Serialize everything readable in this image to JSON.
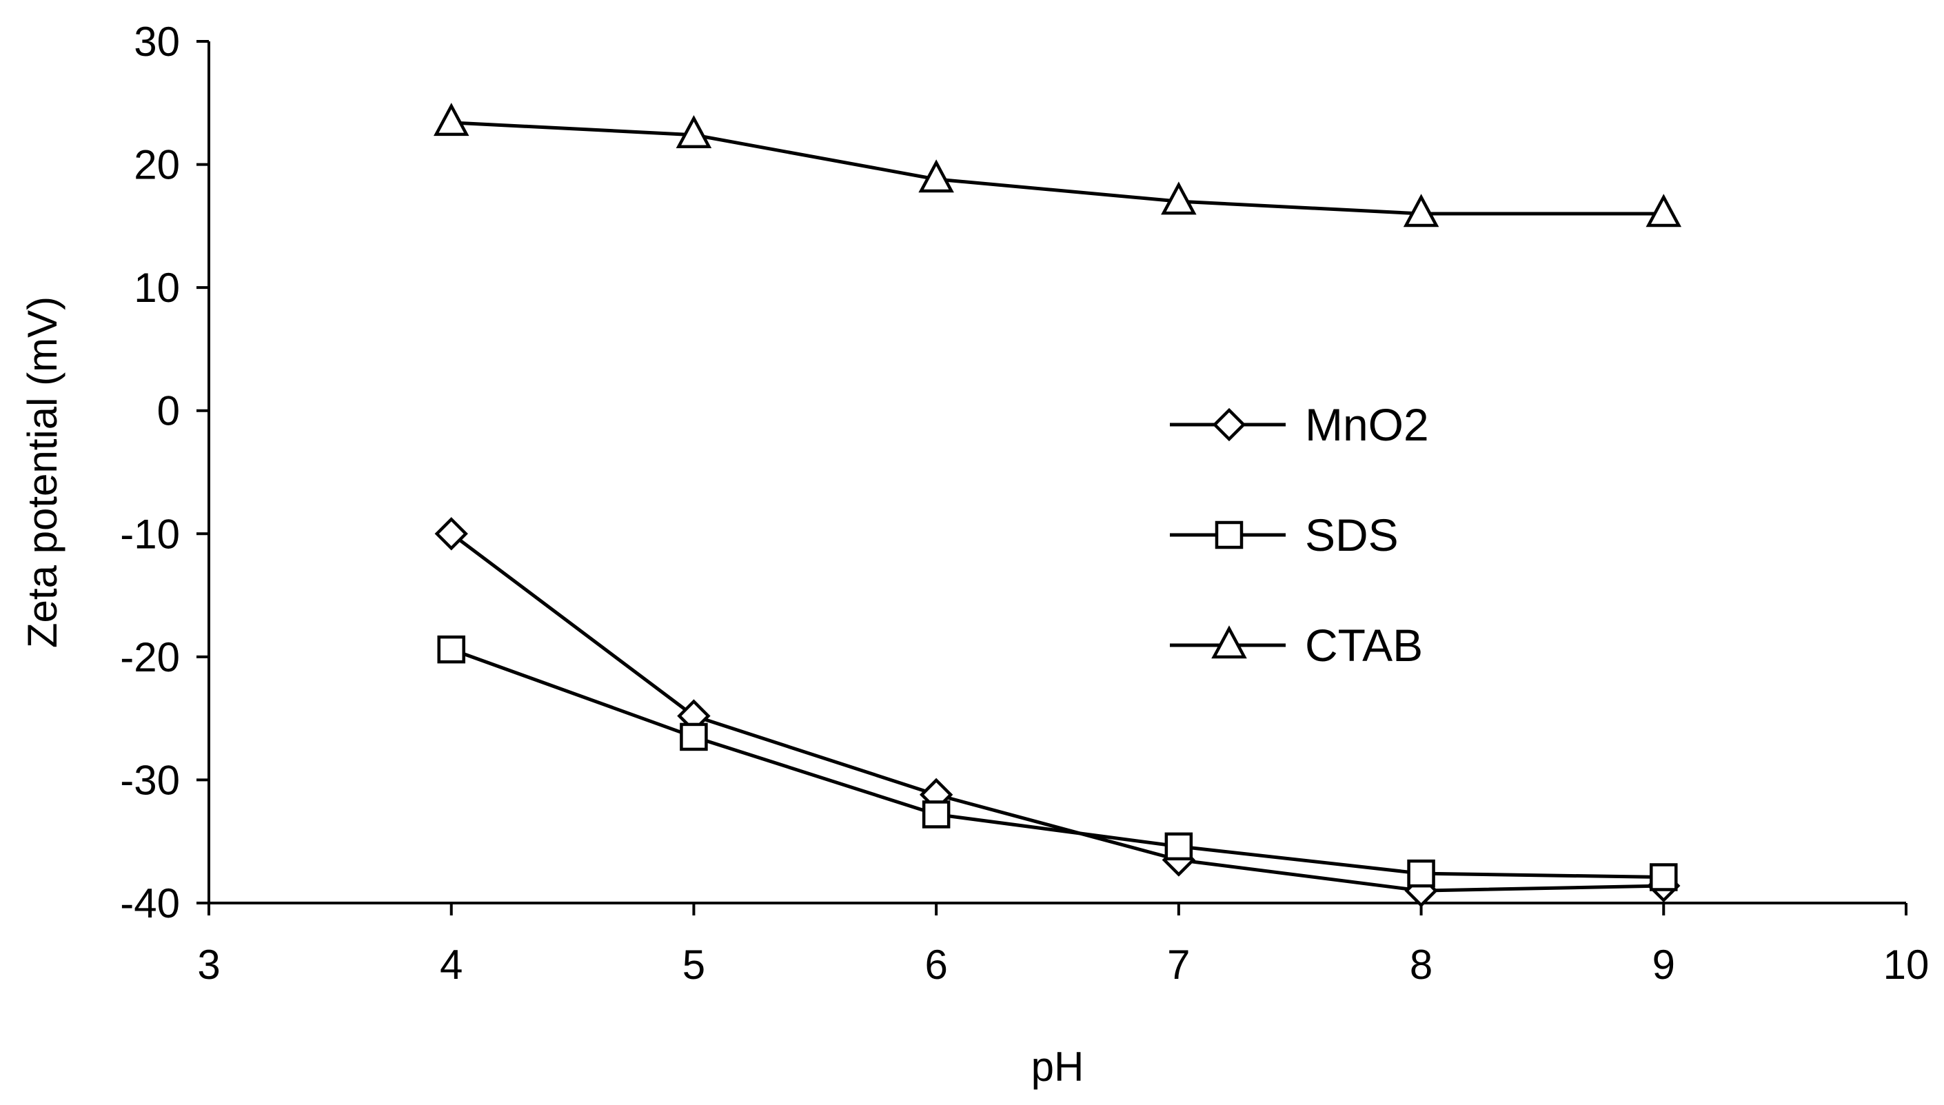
{
  "chart_data": {
    "type": "line",
    "title": "",
    "xlabel": "pH",
    "ylabel": "Zeta potential (mV)",
    "xlim": [
      3,
      10
    ],
    "ylim": [
      -40,
      30
    ],
    "xticks": [
      "3",
      "4",
      "5",
      "6",
      "7",
      "8",
      "9",
      "10"
    ],
    "yticks": [
      "30",
      "20",
      "10",
      "0",
      "-10",
      "-20",
      "-30",
      "-40"
    ],
    "x": [
      4,
      5,
      6,
      7,
      8,
      9
    ],
    "series": [
      {
        "name": "MnO2",
        "marker": "diamond",
        "values": [
          -10,
          -24.8,
          -31.2,
          -36.5,
          -39,
          -38.6
        ]
      },
      {
        "name": "SDS",
        "marker": "square",
        "values": [
          -19.4,
          -26.5,
          -32.8,
          -35.4,
          -37.6,
          -37.9
        ]
      },
      {
        "name": "CTAB",
        "marker": "triangle",
        "values": [
          23.4,
          22.4,
          18.8,
          17.0,
          16.0,
          16.0
        ]
      }
    ],
    "grid": false,
    "legend_position": "center-right"
  }
}
